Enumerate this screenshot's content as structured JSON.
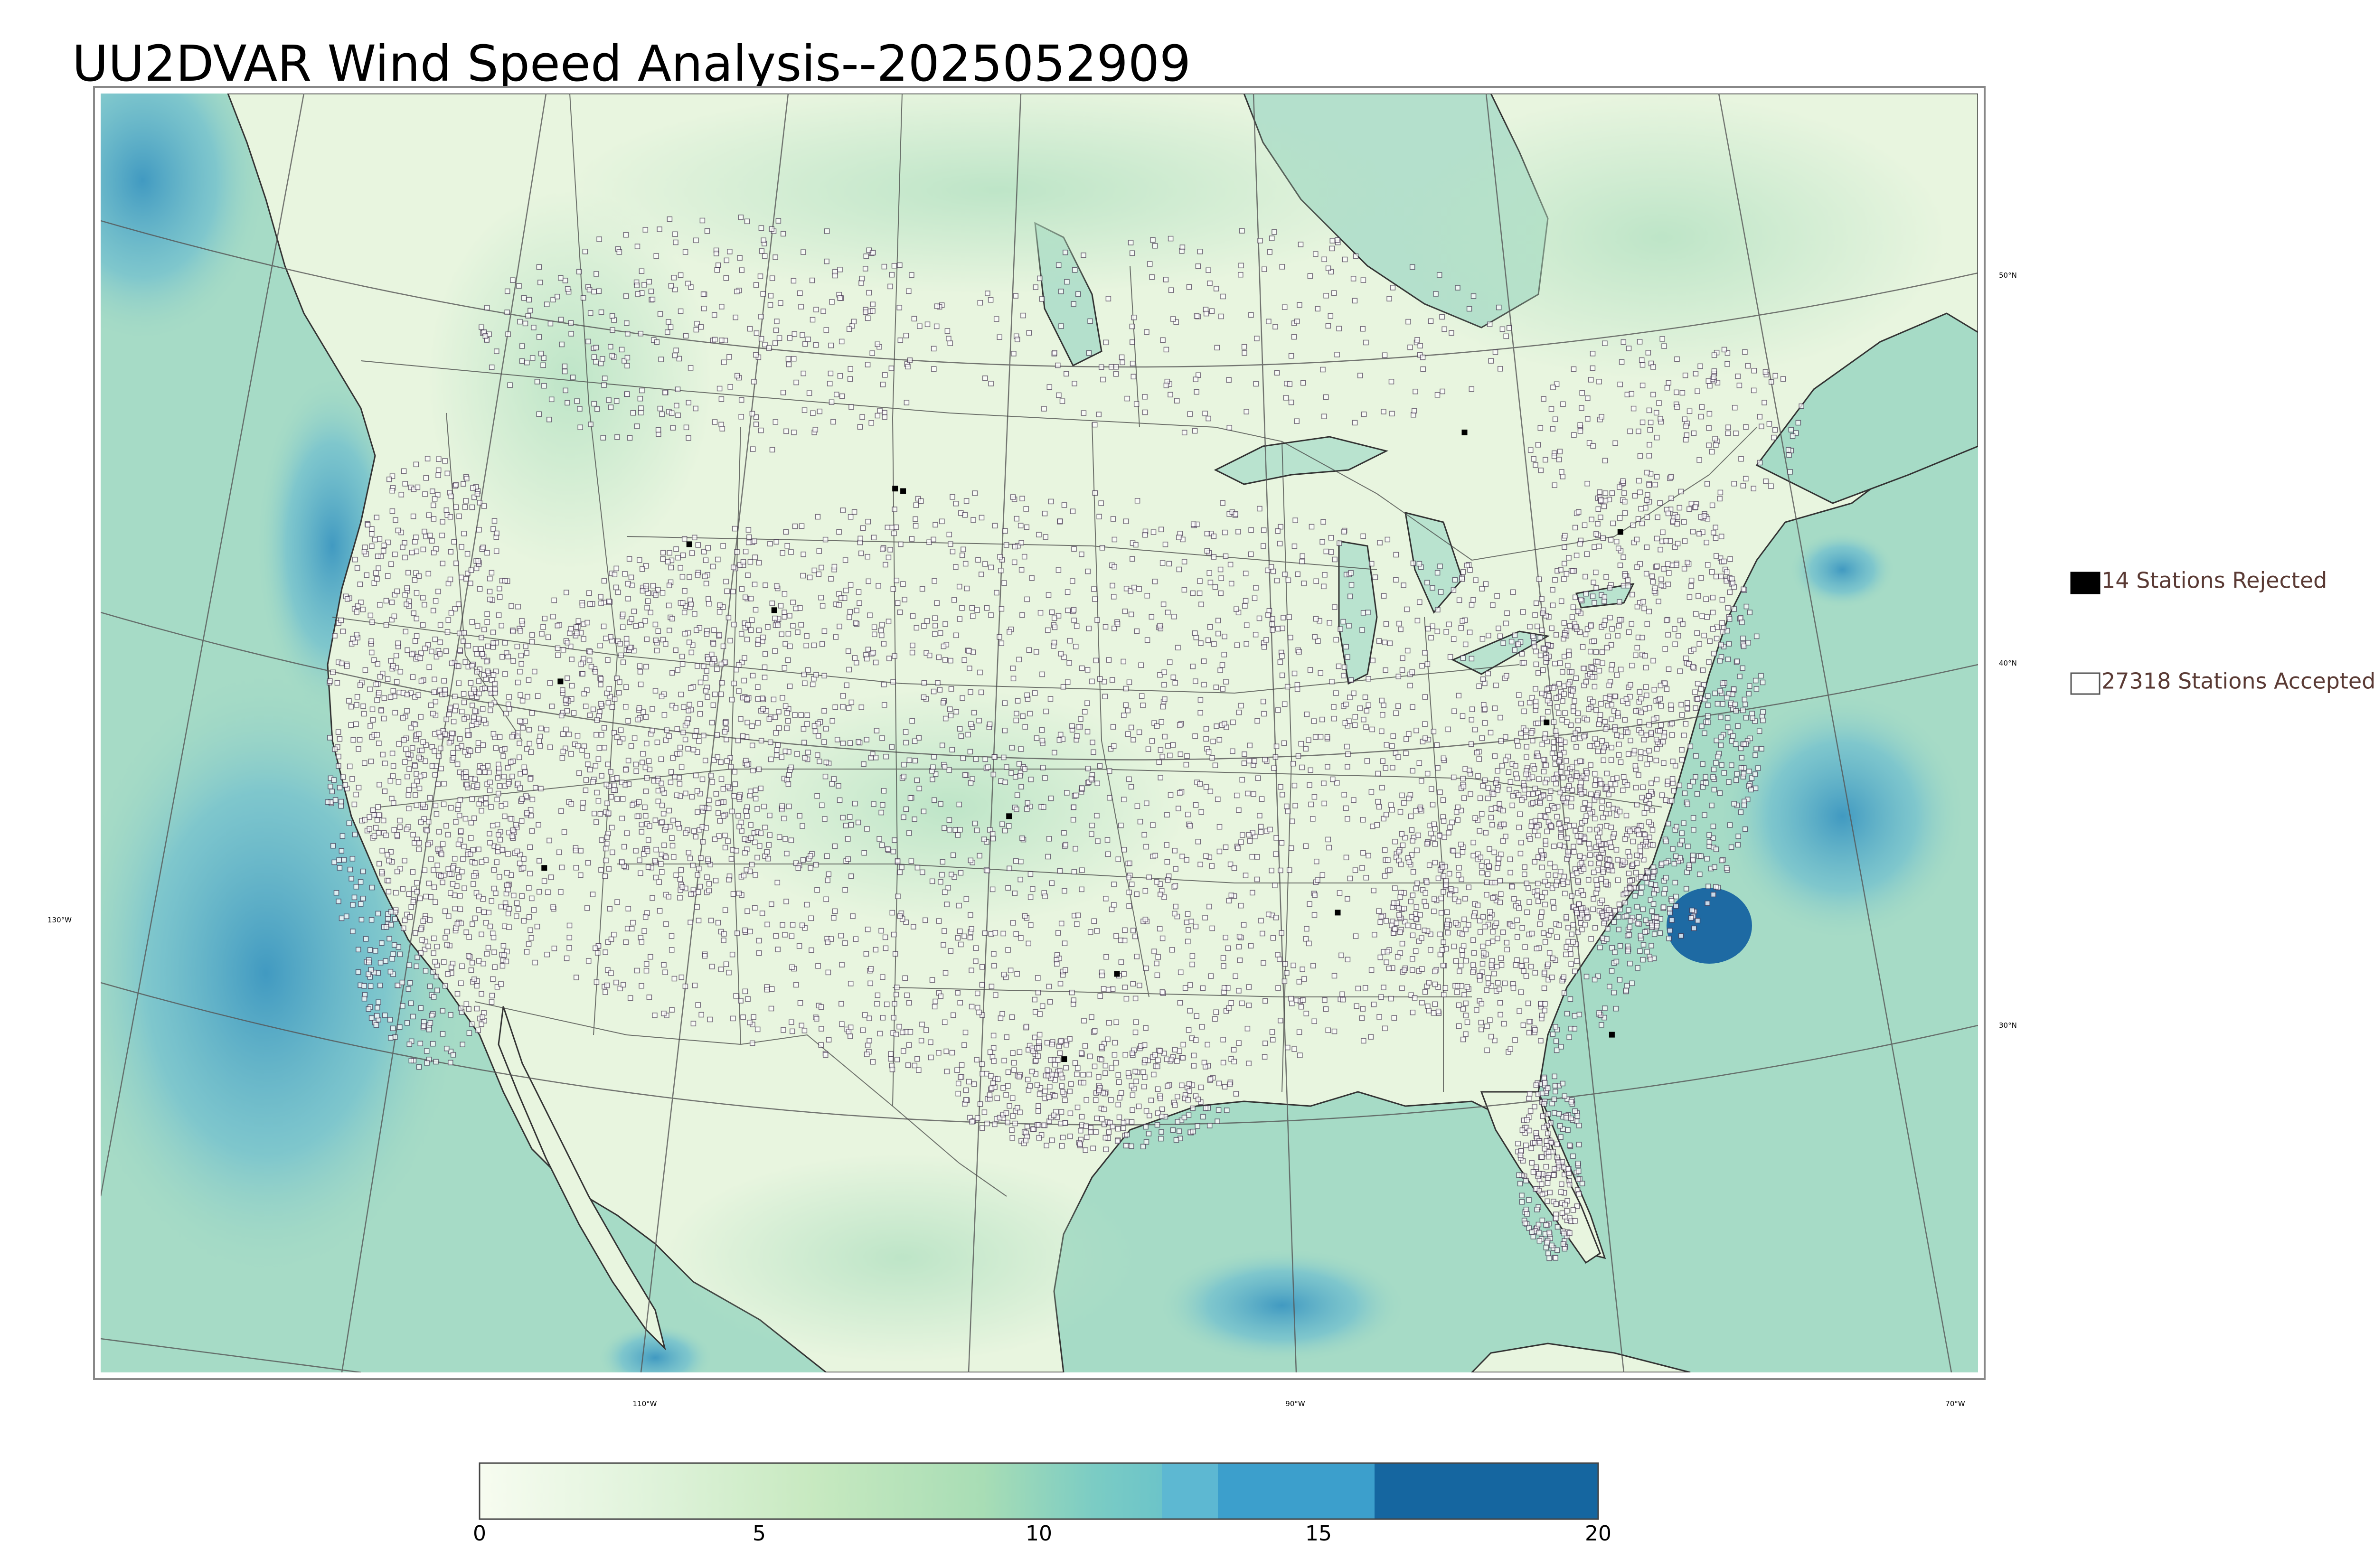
{
  "title": "UU2DVAR Wind Speed Analysis--2025052909",
  "legend": {
    "rejected": {
      "count": 14,
      "label": "14 Stations Rejected",
      "color": "#000000"
    },
    "accepted": {
      "count": 27318,
      "label": "27318 Stations Accepted",
      "color": "#ffffff"
    },
    "text_color": "#5a3a34"
  },
  "graticule": {
    "latitudes": [
      "50°N",
      "40°N",
      "30°N"
    ],
    "longitudes": [
      "110°W",
      "90°W",
      "70°W"
    ],
    "side_label": "130°W"
  },
  "colorbar": {
    "ticks": [
      "0",
      "5",
      "10",
      "15",
      "20"
    ],
    "min": 0,
    "max": 20,
    "colors": [
      "#f7fcf0",
      "#e0f3db",
      "#c7e9c0",
      "#a8ddb5",
      "#7bccc4",
      "#4eb3d3",
      "#2b8cbe",
      "#0868ac"
    ]
  },
  "map": {
    "ocean_color": "#9fd7c3",
    "land_color": "#e9f6e1",
    "deep_wind_color": "#2f93c4",
    "station_edge_color": "#4a3a55"
  }
}
